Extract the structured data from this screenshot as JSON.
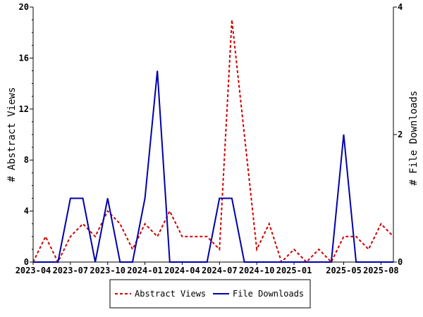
{
  "chart_data": {
    "type": "line",
    "title": "",
    "xlabel": "",
    "ylabel": "# Abstract Views",
    "y2label": "# File Downloads",
    "x": [
      "2023-04",
      "2023-05",
      "2023-06",
      "2023-07",
      "2023-08",
      "2023-09",
      "2023-10",
      "2023-11",
      "2023-12",
      "2024-01",
      "2024-02",
      "2024-03",
      "2024-04",
      "2024-05",
      "2024-06",
      "2024-07",
      "2024-08",
      "2024-09",
      "2024-10",
      "2024-11",
      "2024-12",
      "2025-01",
      "2025-02",
      "2025-03",
      "2025-04",
      "2025-05",
      "2025-06",
      "2025-07",
      "2025-08",
      "2025-09"
    ],
    "x_tick_labels": [
      "2023-04",
      "2023-07",
      "2023-10",
      "2024-01",
      "2024-04",
      "2024-07",
      "2024-10",
      "2025-01",
      "2025-05",
      "2025-08"
    ],
    "ylim": [
      0,
      20
    ],
    "y_ticks": [
      0,
      4,
      8,
      12,
      16,
      20
    ],
    "y2lim": [
      0,
      4
    ],
    "y2_ticks": [
      0,
      2,
      4
    ],
    "grid": false,
    "legend_position": "bottom",
    "series": [
      {
        "name": "Abstract Views",
        "axis": "left",
        "color": "#cc0000",
        "style": "dashed",
        "values": [
          0,
          2,
          0,
          2,
          3,
          2,
          4,
          3,
          1,
          3,
          2,
          4,
          2,
          2,
          2,
          1,
          19,
          10,
          1,
          3,
          0,
          1,
          0,
          1,
          0,
          2,
          2,
          1,
          3,
          2
        ]
      },
      {
        "name": "File Downloads",
        "axis": "right",
        "color": "#0000aa",
        "style": "solid",
        "values": [
          0,
          0,
          0,
          1,
          1,
          0,
          1,
          0,
          0,
          1,
          3,
          0,
          0,
          0,
          0,
          1,
          1,
          0,
          0,
          0,
          0,
          0,
          0,
          0,
          0,
          2,
          0,
          0,
          0,
          0
        ]
      }
    ]
  }
}
